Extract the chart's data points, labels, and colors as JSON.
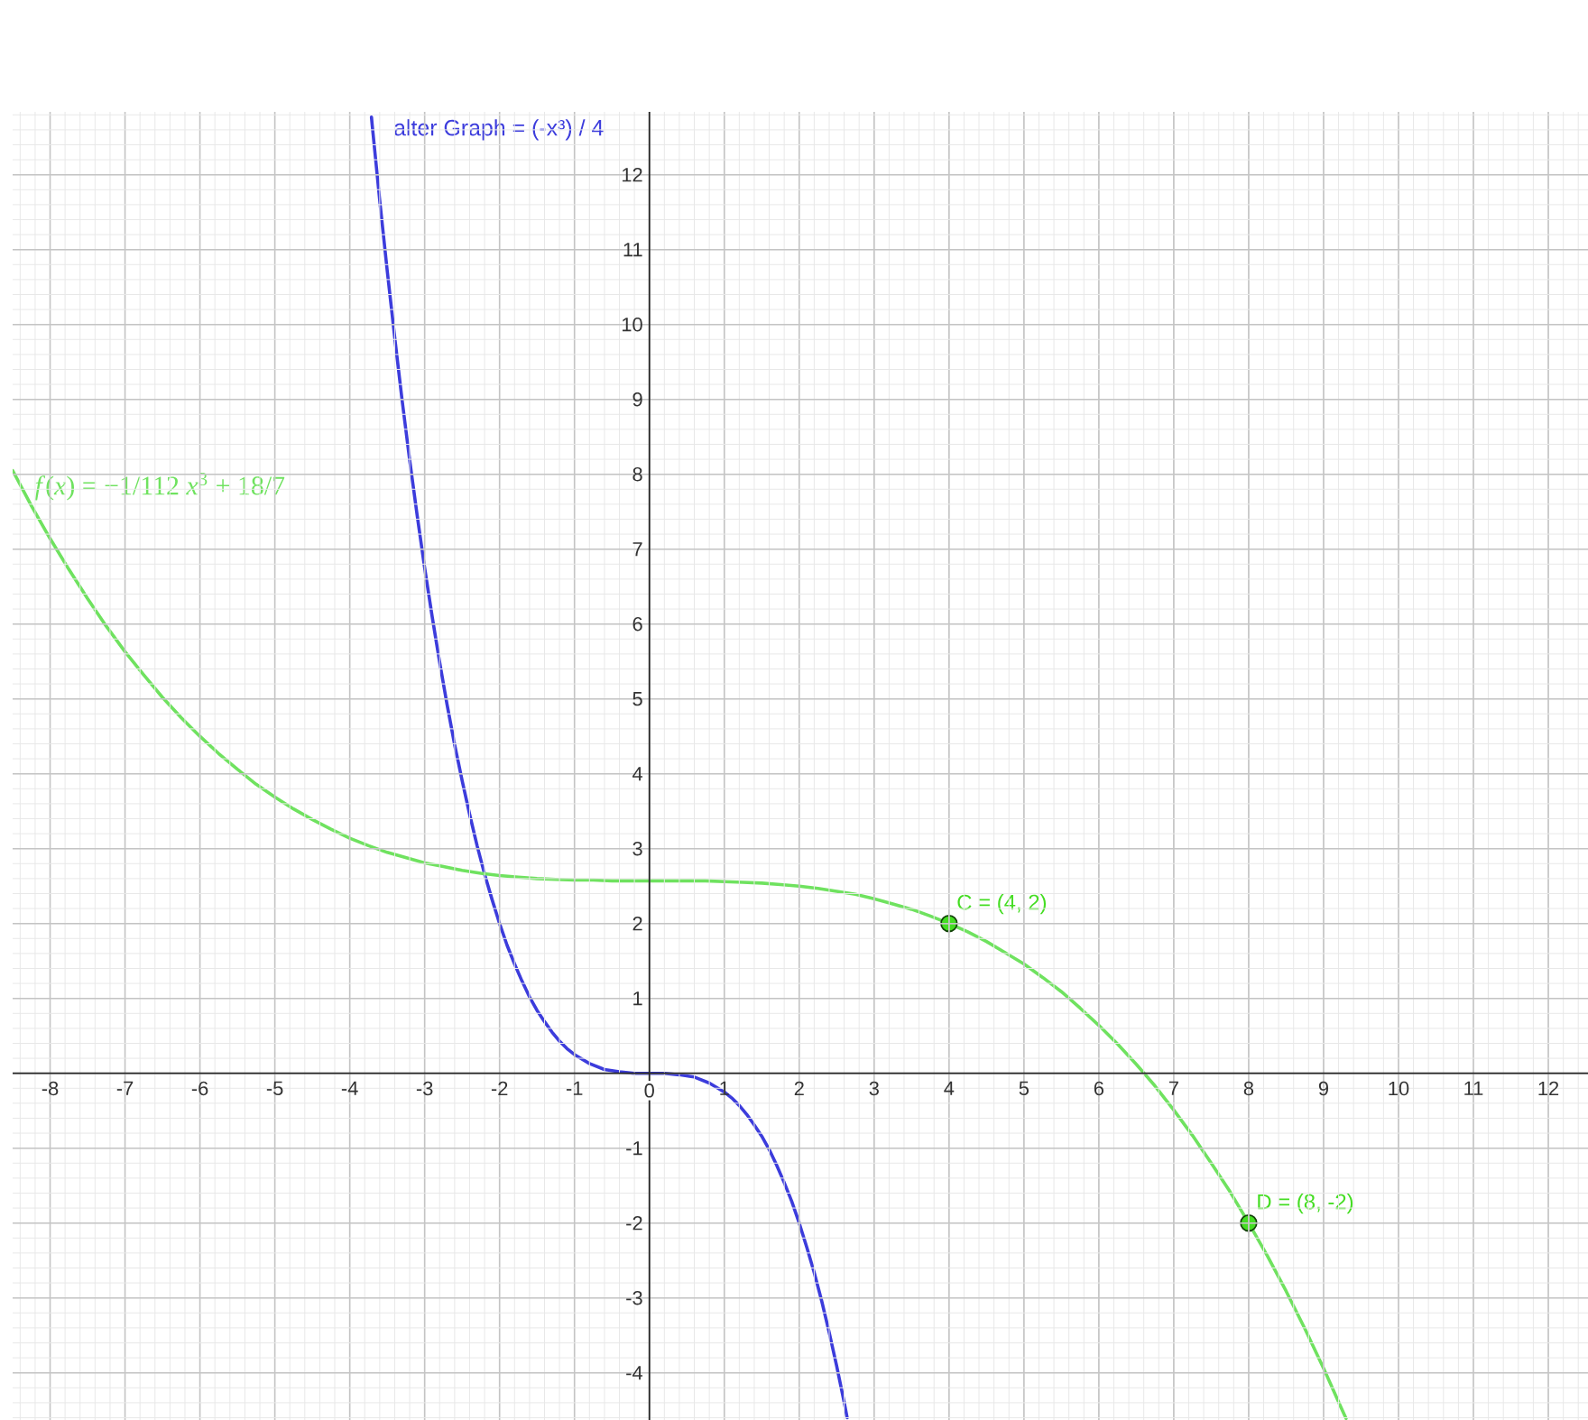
{
  "chart_data": {
    "type": "line",
    "xlim": [
      -8.5,
      12.53
    ],
    "ylim": [
      -4.63,
      12.84
    ],
    "xticks": [
      -8,
      -7,
      -6,
      -5,
      -4,
      -3,
      -2,
      -1,
      0,
      1,
      2,
      3,
      4,
      5,
      6,
      7,
      8,
      9,
      10,
      11,
      12
    ],
    "yticks": [
      -4,
      -3,
      -2,
      -1,
      {
        "value": 0,
        "label": null
      },
      1,
      2,
      3,
      4,
      5,
      6,
      7,
      8,
      9,
      10,
      11,
      12
    ],
    "grid": true,
    "series": [
      {
        "name": "alter Graph = (-x³) / 4",
        "color": "#3c3cdc",
        "x": [
          -3.71,
          -3.7,
          -3.6,
          -3.5,
          -3.4,
          -3.3,
          -3.2,
          -3.1,
          -3,
          -2.9,
          -2.8,
          -2.7,
          -2.6,
          -2.5,
          -2.4,
          -2.3,
          -2.2,
          -2.1,
          -2,
          -1.9,
          -1.8,
          -1.7,
          -1.6,
          -1.5,
          -1.4,
          -1.3,
          -1.2,
          -1.1,
          -1,
          -0.8,
          -0.6,
          -0.4,
          -0.2,
          0,
          0.2,
          0.4,
          0.6,
          0.8,
          1,
          1.1,
          1.2,
          1.3,
          1.4,
          1.5,
          1.6,
          1.7,
          1.8,
          1.9,
          2,
          2.1,
          2.2,
          2.3,
          2.4,
          2.5,
          2.6,
          2.64
        ],
        "values": [
          12.77,
          12.66,
          11.66,
          10.72,
          9.83,
          8.98,
          8.19,
          7.45,
          6.75,
          6.1,
          5.49,
          4.92,
          4.39,
          3.91,
          3.46,
          3.04,
          2.66,
          2.32,
          2,
          1.71,
          1.46,
          1.23,
          1.02,
          0.84,
          0.69,
          0.55,
          0.43,
          0.33,
          0.25,
          0.13,
          0.05,
          0.02,
          0,
          0,
          0,
          -0.02,
          -0.05,
          -0.13,
          -0.25,
          -0.33,
          -0.43,
          -0.55,
          -0.69,
          -0.84,
          -1.02,
          -1.23,
          -1.46,
          -1.71,
          -2,
          -2.32,
          -2.66,
          -3.04,
          -3.46,
          -3.91,
          -4.39,
          -4.6
        ]
      },
      {
        "name": "*f*(*x*) = −1/112 *x*$^{3}$ + 18/7",
        "color": "#6fe25f",
        "x": [
          -8.5,
          -8.25,
          -8,
          -7.75,
          -7.5,
          -7.25,
          -7,
          -6.75,
          -6.5,
          -6.25,
          -6,
          -5.75,
          -5.5,
          -5.25,
          -5,
          -4.75,
          -4.5,
          -4.25,
          -4,
          -3.75,
          -3.5,
          -3.25,
          -3,
          -2.75,
          -2.5,
          -2.25,
          -2,
          -1.75,
          -1.5,
          -1.25,
          -1,
          -0.75,
          -0.5,
          -0.25,
          0,
          0.25,
          0.5,
          0.75,
          1,
          1.25,
          1.5,
          1.75,
          2,
          2.25,
          2.5,
          2.75,
          3,
          3.25,
          3.5,
          3.75,
          4,
          4.25,
          4.5,
          4.75,
          5,
          5.25,
          5.5,
          5.75,
          6,
          6.25,
          6.5,
          6.75,
          7,
          7.25,
          7.5,
          7.75,
          8,
          8.25,
          8.5,
          8.75,
          9,
          9.25,
          9.3
        ],
        "values": [
          8.05,
          7.58,
          7.14,
          6.73,
          6.34,
          5.97,
          5.63,
          5.32,
          5.02,
          4.75,
          4.5,
          4.27,
          4.06,
          3.86,
          3.69,
          3.53,
          3.39,
          3.26,
          3.14,
          3.04,
          2.95,
          2.88,
          2.81,
          2.76,
          2.71,
          2.67,
          2.64,
          2.62,
          2.6,
          2.59,
          2.58,
          2.58,
          2.57,
          2.57,
          2.57,
          2.57,
          2.57,
          2.57,
          2.56,
          2.55,
          2.54,
          2.52,
          2.5,
          2.47,
          2.43,
          2.39,
          2.33,
          2.26,
          2.19,
          2.1,
          2,
          1.89,
          1.76,
          1.61,
          1.46,
          1.28,
          1.09,
          0.87,
          0.64,
          0.39,
          0.12,
          -0.17,
          -0.49,
          -0.83,
          -1.2,
          -1.58,
          -2,
          -2.44,
          -2.91,
          -3.41,
          -3.94,
          -4.5,
          -4.61
        ]
      },
      {
        "type": "scatter",
        "marker": "circle",
        "color": "#44dd22",
        "x": [
          4,
          8
        ],
        "values": [
          2,
          -2
        ]
      }
    ],
    "annotations": [
      {
        "text": "C = (4, 2)",
        "x": 4,
        "y": 2
      },
      {
        "text": "D = (8, -2)",
        "x": 8,
        "y": -2
      }
    ]
  }
}
